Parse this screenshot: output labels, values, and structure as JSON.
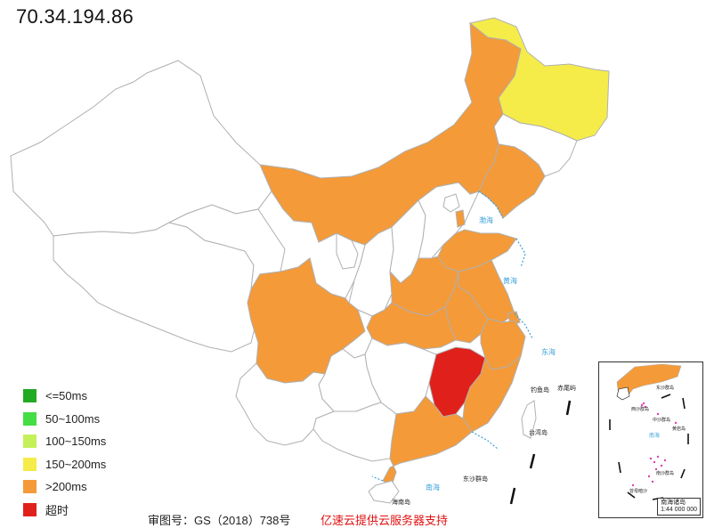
{
  "header": {
    "ip": "70.34.194.86"
  },
  "colors": {
    "le50": "#22aa22",
    "r50_100": "#44dd44",
    "r100_150": "#c4f05a",
    "r150_200": "#f5ec4a",
    "gt200": "#f49a38",
    "timeout": "#e0201a",
    "none": "#ffffff",
    "border": "#b0b0b0",
    "outline": "#111111"
  },
  "legend": {
    "items": [
      {
        "label": "<=50ms",
        "color": "#22aa22"
      },
      {
        "label": "50~100ms",
        "color": "#44dd44"
      },
      {
        "label": "100~150ms",
        "color": "#c4f05a"
      },
      {
        "label": "150~200ms",
        "color": "#f5ec4a"
      },
      {
        "label": ">200ms",
        "color": "#f49a38"
      },
      {
        "label": "超时",
        "color": "#e0201a"
      }
    ]
  },
  "map": {
    "provinces": [
      {
        "name": "Heilongjiang",
        "status": "150~200ms"
      },
      {
        "name": "Jilin",
        "status": "none"
      },
      {
        "name": "Liaoning",
        "status": ">200ms"
      },
      {
        "name": "Inner Mongolia",
        "status": ">200ms"
      },
      {
        "name": "Xinjiang",
        "status": "none"
      },
      {
        "name": "Tibet",
        "status": "none"
      },
      {
        "name": "Qinghai",
        "status": "none"
      },
      {
        "name": "Gansu",
        "status": "none"
      },
      {
        "name": "Ningxia",
        "status": "none"
      },
      {
        "name": "Shaanxi",
        "status": "none"
      },
      {
        "name": "Shanxi",
        "status": "none"
      },
      {
        "name": "Hebei",
        "status": "none"
      },
      {
        "name": "Beijing",
        "status": "none"
      },
      {
        "name": "Tianjin",
        "status": ">200ms"
      },
      {
        "name": "Shandong",
        "status": ">200ms"
      },
      {
        "name": "Henan",
        "status": ">200ms"
      },
      {
        "name": "Jiangsu",
        "status": ">200ms"
      },
      {
        "name": "Anhui",
        "status": ">200ms"
      },
      {
        "name": "Shanghai",
        "status": ">200ms"
      },
      {
        "name": "Zhejiang",
        "status": ">200ms"
      },
      {
        "name": "Hubei",
        "status": ">200ms"
      },
      {
        "name": "Sichuan",
        "status": ">200ms"
      },
      {
        "name": "Chongqing",
        "status": "none"
      },
      {
        "name": "Hunan",
        "status": "none"
      },
      {
        "name": "Jiangxi",
        "status": "超时"
      },
      {
        "name": "Fujian",
        "status": ">200ms"
      },
      {
        "name": "Guangdong",
        "status": ">200ms"
      },
      {
        "name": "Guangxi",
        "status": "none"
      },
      {
        "name": "Guizhou",
        "status": "none"
      },
      {
        "name": "Yunnan",
        "status": "none"
      },
      {
        "name": "Hainan",
        "status": "none"
      },
      {
        "name": "Taiwan",
        "status": "none"
      }
    ],
    "sea_labels": [
      "渤海",
      "黄海",
      "东海",
      "南海"
    ],
    "island_labels": [
      "钓鱼岛",
      "赤尾屿",
      "台湾岛",
      "东沙群岛",
      "海南岛"
    ],
    "inset": {
      "caption_title": "南海诸岛",
      "caption_scale": "1:44 000 000",
      "labels": [
        "东沙群岛",
        "西沙群岛",
        "中沙群岛",
        "南海",
        "黄岩岛",
        "南沙群岛",
        "曾母暗沙"
      ]
    }
  },
  "footer": {
    "approval": "审图号：GS（2018）738号",
    "credit": "亿速云提供云服务器支持"
  }
}
